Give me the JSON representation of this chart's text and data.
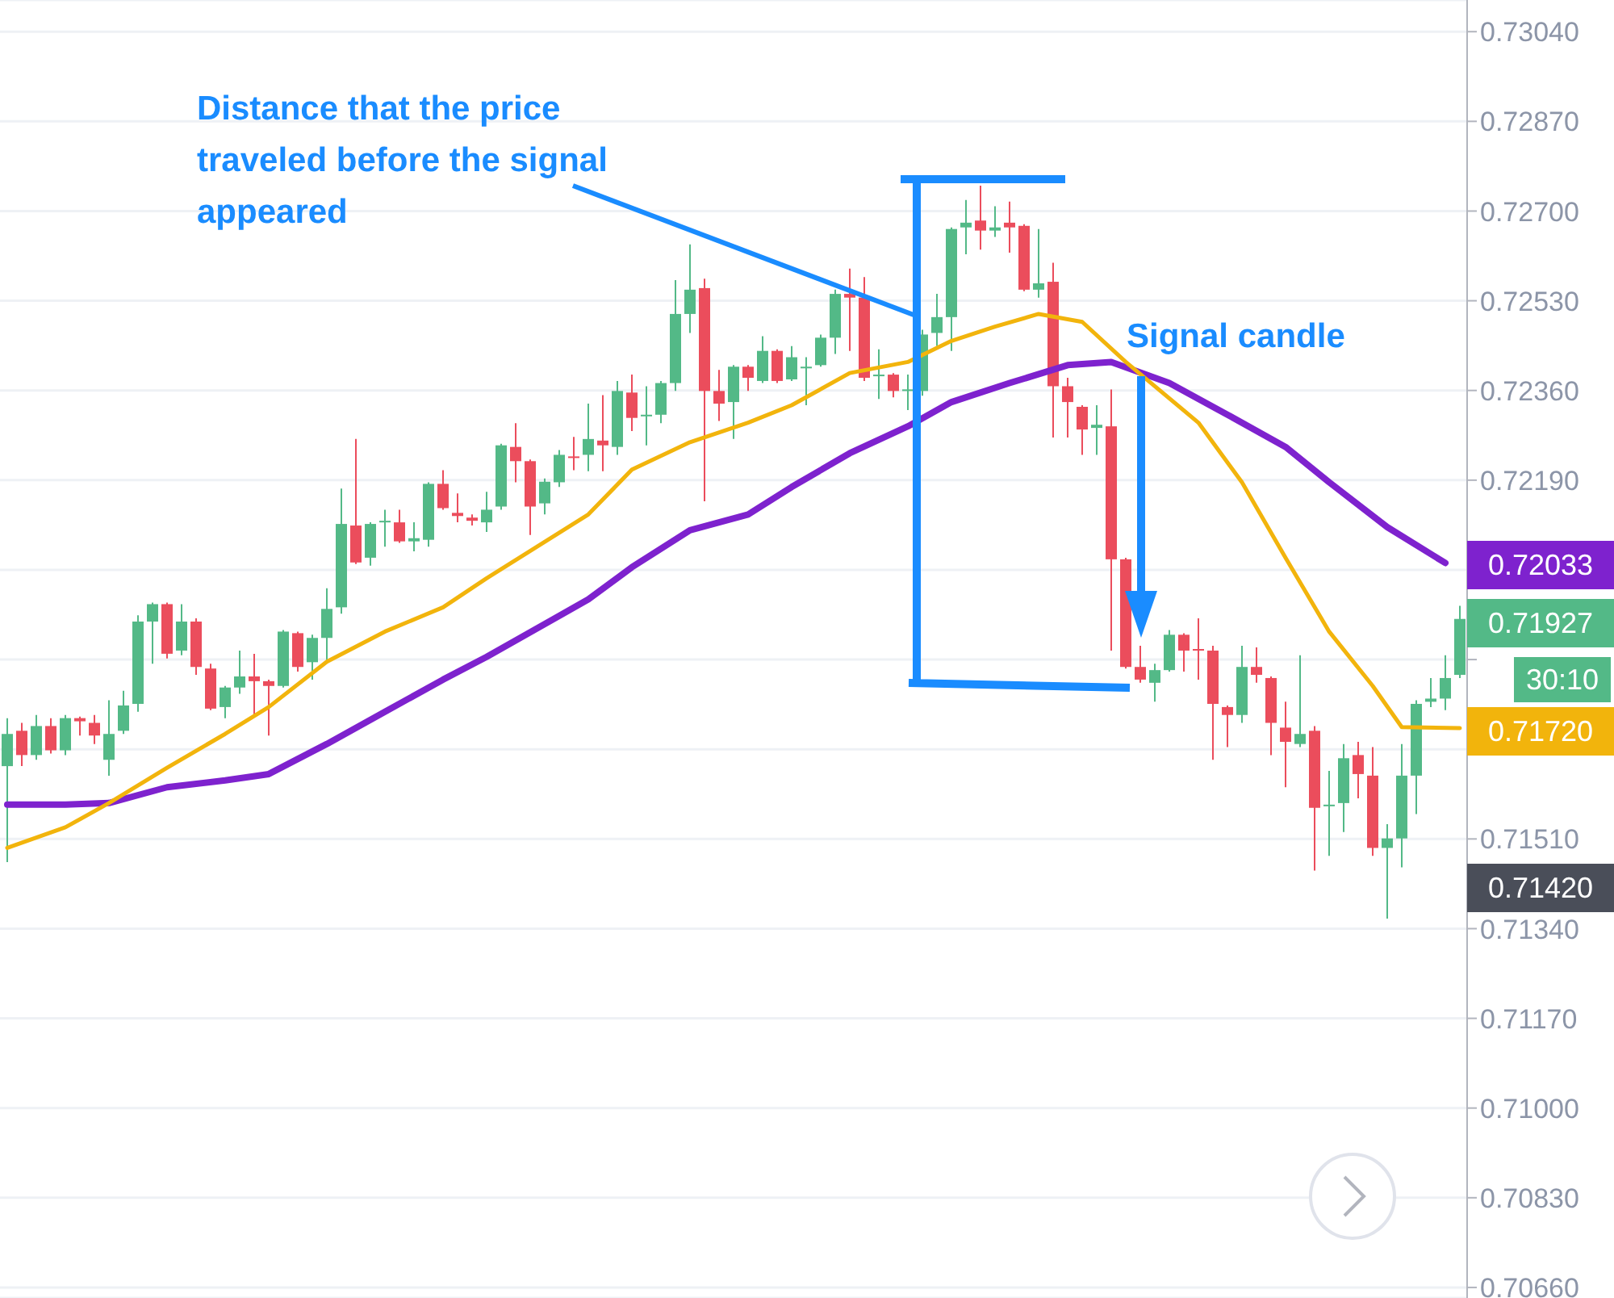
{
  "chart_data": {
    "type": "candlestick",
    "categories": [
      null,
      null,
      null,
      null,
      null,
      null,
      null,
      null,
      null,
      null,
      null,
      null,
      null,
      null,
      null,
      null,
      null,
      null,
      null,
      null,
      null,
      null,
      null,
      null,
      null,
      null,
      null,
      null,
      null,
      null,
      null,
      null,
      null,
      null,
      null,
      null,
      null,
      null,
      null,
      null,
      null,
      null,
      null,
      null,
      null,
      null,
      null,
      null,
      null,
      null,
      null,
      null,
      null,
      null,
      null,
      null,
      null,
      null,
      null,
      null,
      null,
      null,
      null,
      null,
      null,
      null,
      null,
      null,
      null,
      null,
      null,
      null,
      null,
      null,
      null,
      null,
      null,
      null,
      null,
      null,
      null,
      null,
      null,
      null,
      null,
      null,
      null,
      null,
      null,
      null,
      null,
      null,
      null,
      null,
      null,
      null,
      null,
      null,
      null,
      null,
      null
    ],
    "ohlc": [
      [
        0.71648,
        0.71739,
        0.71466,
        0.71709
      ],
      [
        0.71715,
        0.7173,
        0.71648,
        0.71669
      ],
      [
        0.71669,
        0.71745,
        0.7166,
        0.71724
      ],
      [
        0.71724,
        0.71739,
        0.71672,
        0.71678
      ],
      [
        0.71678,
        0.71745,
        0.71669,
        0.71739
      ],
      [
        0.71739,
        0.71742,
        0.71706,
        0.71733
      ],
      [
        0.7173,
        0.71745,
        0.7169,
        0.71706
      ],
      [
        0.7166,
        0.71773,
        0.7163,
        0.71709
      ],
      [
        0.71715,
        0.71791,
        0.71709,
        0.71763
      ],
      [
        0.71766,
        0.71934,
        0.71751,
        0.71922
      ],
      [
        0.71922,
        0.71958,
        0.71842,
        0.71955
      ],
      [
        0.71955,
        0.71958,
        0.71852,
        0.71861
      ],
      [
        0.71867,
        0.71955,
        0.71858,
        0.71922
      ],
      [
        0.71922,
        0.71928,
        0.71821,
        0.71836
      ],
      [
        0.71833,
        0.71842,
        0.71754,
        0.71757
      ],
      [
        0.7176,
        0.718,
        0.71739,
        0.71797
      ],
      [
        0.71797,
        0.71867,
        0.71785,
        0.71818
      ],
      [
        0.71818,
        0.71861,
        0.71745,
        0.71809
      ],
      [
        0.71809,
        0.71812,
        0.71706,
        0.718
      ],
      [
        0.718,
        0.71906,
        0.71797,
        0.71903
      ],
      [
        0.719,
        0.71903,
        0.71827,
        0.71836
      ],
      [
        0.71845,
        0.71897,
        0.71812,
        0.71891
      ],
      [
        0.71891,
        0.71985,
        0.71845,
        0.71946
      ],
      [
        0.71949,
        0.72174,
        0.71937,
        0.72107
      ],
      [
        0.72104,
        0.72268,
        0.72031,
        0.72034
      ],
      [
        0.72043,
        0.7211,
        0.72028,
        0.72107
      ],
      [
        0.7211,
        0.72134,
        0.72064,
        0.72113
      ],
      [
        0.7211,
        0.72134,
        0.72071,
        0.72074
      ],
      [
        0.72074,
        0.7211,
        0.72055,
        0.7208
      ],
      [
        0.72077,
        0.72186,
        0.72064,
        0.72183
      ],
      [
        0.72183,
        0.72209,
        0.72134,
        0.72137
      ],
      [
        0.72128,
        0.72165,
        0.7211,
        0.72122
      ],
      [
        0.72119,
        0.72125,
        0.72104,
        0.72113
      ],
      [
        0.7211,
        0.72168,
        0.72092,
        0.72134
      ],
      [
        0.7214,
        0.72259,
        0.72134,
        0.72256
      ],
      [
        0.72253,
        0.72298,
        0.72186,
        0.72226
      ],
      [
        0.72226,
        0.72229,
        0.72086,
        0.7214
      ],
      [
        0.72146,
        0.72193,
        0.72125,
        0.72187
      ],
      [
        0.72186,
        0.72247,
        0.72177,
        0.72238
      ],
      [
        0.72235,
        0.72272,
        0.72209,
        0.72232
      ],
      [
        0.72238,
        0.72335,
        0.72207,
        0.72268
      ],
      [
        0.72265,
        0.72351,
        0.72207,
        0.72256
      ],
      [
        0.72253,
        0.72378,
        0.72238,
        0.72359
      ],
      [
        0.72356,
        0.7239,
        0.72283,
        0.72308
      ],
      [
        0.72311,
        0.72368,
        0.72256,
        0.72314
      ],
      [
        0.72314,
        0.72378,
        0.72298,
        0.72374
      ],
      [
        0.72374,
        0.72569,
        0.72359,
        0.72505
      ],
      [
        0.72505,
        0.72637,
        0.72469,
        0.72551
      ],
      [
        0.72554,
        0.72572,
        0.7215,
        0.72359
      ],
      [
        0.72359,
        0.72399,
        0.72302,
        0.72335
      ],
      [
        0.72338,
        0.72408,
        0.72268,
        0.72405
      ],
      [
        0.72405,
        0.72408,
        0.72359,
        0.72384
      ],
      [
        0.72378,
        0.72463,
        0.72374,
        0.72435
      ],
      [
        0.72435,
        0.72438,
        0.72374,
        0.72378
      ],
      [
        0.72381,
        0.72444,
        0.72378,
        0.72423
      ],
      [
        0.72402,
        0.72423,
        0.72332,
        0.72405
      ],
      [
        0.72408,
        0.72466,
        0.72405,
        0.7246
      ],
      [
        0.7246,
        0.72551,
        0.72429,
        0.72543
      ],
      [
        0.72543,
        0.72591,
        0.72435,
        0.72536
      ],
      [
        0.72536,
        0.72575,
        0.72378,
        0.72384
      ],
      [
        0.72387,
        0.72438,
        0.72344,
        0.7239
      ],
      [
        0.7239,
        0.72393,
        0.72347,
        0.72359
      ],
      [
        0.72359,
        0.7239,
        0.72323,
        0.72362
      ],
      [
        0.72359,
        0.72475,
        0.7235,
        0.72466
      ],
      [
        0.72469,
        0.72543,
        0.72444,
        0.72499
      ],
      [
        0.72499,
        0.72669,
        0.72435,
        0.72666
      ],
      [
        0.72669,
        0.72721,
        0.72618,
        0.72678
      ],
      [
        0.72682,
        0.72748,
        0.72627,
        0.72663
      ],
      [
        0.72663,
        0.72709,
        0.72651,
        0.72669
      ],
      [
        0.72678,
        0.72718,
        0.72621,
        0.72669
      ],
      [
        0.72672,
        0.72675,
        0.72548,
        0.72551
      ],
      [
        0.72551,
        0.72666,
        0.72536,
        0.72563
      ],
      [
        0.72566,
        0.72602,
        0.72271,
        0.72368
      ],
      [
        0.72368,
        0.72384,
        0.72271,
        0.72338
      ],
      [
        0.72329,
        0.72332,
        0.72238,
        0.72286
      ],
      [
        0.72289,
        0.72332,
        0.72238,
        0.72295
      ],
      [
        0.72292,
        0.72362,
        0.71867,
        0.7204
      ],
      [
        0.7204,
        0.72043,
        0.71833,
        0.71836
      ],
      [
        0.71836,
        0.71876,
        0.71806,
        0.71812
      ],
      [
        0.71806,
        0.71842,
        0.7177,
        0.7183
      ],
      [
        0.7183,
        0.71906,
        0.71827,
        0.71897
      ],
      [
        0.71897,
        0.719,
        0.71827,
        0.71867
      ],
      [
        0.7187,
        0.71928,
        0.71812,
        0.71867
      ],
      [
        0.71867,
        0.71876,
        0.7166,
        0.71766
      ],
      [
        0.7176,
        0.71763,
        0.71684,
        0.71745
      ],
      [
        0.71745,
        0.71876,
        0.7173,
        0.71836
      ],
      [
        0.71836,
        0.71873,
        0.71806,
        0.71821
      ],
      [
        0.71815,
        0.71818,
        0.71669,
        0.7173
      ],
      [
        0.71721,
        0.7177,
        0.71608,
        0.71694
      ],
      [
        0.7169,
        0.71858,
        0.71684,
        0.71709
      ],
      [
        0.71715,
        0.71724,
        0.7145,
        0.71569
      ],
      [
        0.71572,
        0.71639,
        0.71478,
        0.71575
      ],
      [
        0.71578,
        0.7169,
        0.71523,
        0.71663
      ],
      [
        0.71669,
        0.71694,
        0.71587,
        0.71633
      ],
      [
        0.7163,
        0.71684,
        0.71478,
        0.71493
      ],
      [
        0.71493,
        0.71538,
        0.71359,
        0.71511
      ],
      [
        0.71511,
        0.7169,
        0.71456,
        0.7163
      ],
      [
        0.7163,
        0.71773,
        0.71557,
        0.71766
      ],
      [
        0.7177,
        0.71815,
        0.7176,
        0.71776
      ],
      [
        0.71776,
        0.71858,
        0.71754,
        0.71815
      ],
      [
        0.71821,
        0.71952,
        0.71815,
        0.71927
      ]
    ],
    "series": [
      {
        "type": "line",
        "color": "#7e22ce",
        "values": [
          0.71575,
          null,
          null,
          null,
          0.71575,
          null,
          null,
          0.71578,
          null,
          null,
          null,
          0.71608,
          null,
          null,
          null,
          0.71621,
          null,
          null,
          0.71633,
          null,
          null,
          null,
          0.7169,
          null,
          null,
          null,
          0.71751,
          null,
          null,
          null,
          0.71812,
          null,
          null,
          0.71855,
          null,
          null,
          null,
          null,
          null,
          null,
          0.71964,
          null,
          null,
          0.72025,
          null,
          null,
          null,
          0.72095,
          null,
          null,
          null,
          0.72125,
          null,
          null,
          0.72177,
          null,
          null,
          null,
          0.72241,
          null,
          null,
          null,
          0.72292,
          null,
          null,
          0.72338,
          null,
          null,
          null,
          0.72374,
          null,
          null,
          null,
          0.72408,
          null,
          null,
          0.72414,
          null,
          null,
          null,
          0.72374,
          null,
          null,
          null,
          0.72314,
          null,
          null,
          null,
          0.72253,
          null,
          null,
          0.72186,
          null,
          null,
          null,
          0.72101,
          null,
          null,
          null,
          0.72033,
          null
        ]
      },
      {
        "type": "line",
        "color": "#f2b40c",
        "values": [
          0.71493,
          null,
          null,
          null,
          0.71532,
          null,
          null,
          0.71578,
          null,
          null,
          null,
          0.71645,
          null,
          null,
          null,
          0.71709,
          null,
          null,
          0.7176,
          null,
          null,
          null,
          0.71846,
          null,
          null,
          null,
          0.71903,
          null,
          null,
          null,
          0.71949,
          null,
          null,
          0.72004,
          null,
          null,
          null,
          null,
          null,
          null,
          0.72125,
          null,
          null,
          0.7221,
          null,
          null,
          null,
          0.72262,
          null,
          null,
          null,
          0.72299,
          null,
          null,
          0.72332,
          null,
          null,
          null,
          0.72393,
          null,
          null,
          null,
          0.72414,
          null,
          null,
          0.72454,
          null,
          null,
          0.72481,
          null,
          null,
          0.72505,
          null,
          null,
          0.7249,
          null,
          null,
          0.72414,
          null,
          null,
          null,
          null,
          0.72299,
          null,
          null,
          0.72186,
          null,
          null,
          0.72043,
          null,
          null,
          0.71903,
          null,
          null,
          0.718,
          null,
          0.71722,
          null,
          null,
          null,
          0.7172
        ]
      }
    ],
    "ylim": [
      0.7064,
      0.731
    ],
    "yticks": [
      {
        "value": 0.7066,
        "label": "0.70660"
      },
      {
        "value": 0.7083,
        "label": "0.70830"
      },
      {
        "value": 0.71,
        "label": "0.71000"
      },
      {
        "value": 0.7117,
        "label": "0.71170"
      },
      {
        "value": 0.7134,
        "label": "0.71340"
      },
      {
        "value": 0.7151,
        "label": "0.71510"
      },
      {
        "value": 0.7168,
        "label": null
      },
      {
        "value": 0.7185,
        "label": null
      },
      {
        "value": 0.7202,
        "label": null
      },
      {
        "value": 0.7219,
        "label": "0.72190"
      },
      {
        "value": 0.7236,
        "label": "0.72360"
      },
      {
        "value": 0.7253,
        "label": "0.72530"
      },
      {
        "value": 0.727,
        "label": "0.72700"
      },
      {
        "value": 0.7287,
        "label": "0.72870"
      },
      {
        "value": 0.7304,
        "label": "0.73040"
      }
    ],
    "grid": "y",
    "tick_labels": "y",
    "annotations": [
      "Distance that the price traveled before the signal appeared",
      "Signal candle",
      "0.72033",
      "0.71927",
      "30:10",
      "0.71720",
      "0.71420"
    ]
  }
}
